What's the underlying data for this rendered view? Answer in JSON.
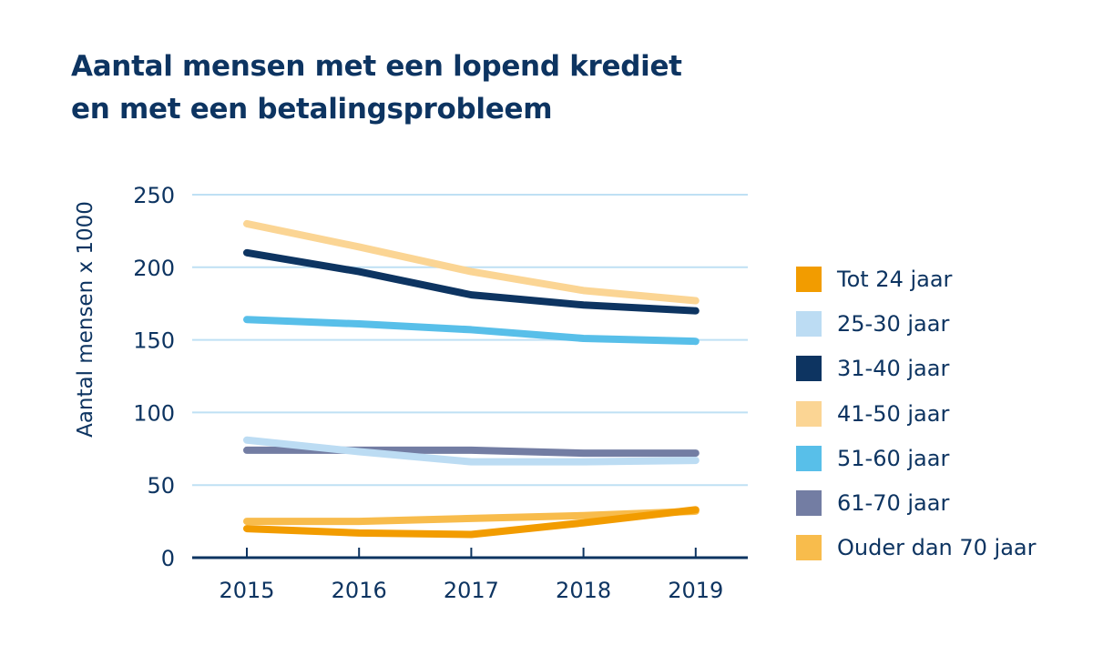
{
  "title_lines": [
    "Aantal mensen met een lopend krediet",
    "en met een betalingsprobleem"
  ],
  "chart_data": {
    "type": "line",
    "title": "Aantal mensen met een lopend krediet en met een betalingsprobleem",
    "xlabel": "",
    "ylabel": "Aantal mensen x 1000",
    "x": [
      "2015",
      "2016",
      "2017",
      "2018",
      "2019"
    ],
    "ylim": [
      0,
      250
    ],
    "yticks": [
      0,
      50,
      100,
      150,
      200,
      250
    ],
    "grid": true,
    "legend_position": "right",
    "series": [
      {
        "name": "Tot 24 jaar",
        "color": "#f29c00",
        "values": [
          20,
          17,
          16,
          24,
          33
        ]
      },
      {
        "name": "25-30 jaar",
        "color": "#bcdcf3",
        "values": [
          81,
          73,
          66,
          66,
          67
        ]
      },
      {
        "name": "31-40 jaar",
        "color": "#0d3461",
        "values": [
          210,
          197,
          181,
          174,
          170
        ]
      },
      {
        "name": "41-50 jaar",
        "color": "#fbd594",
        "values": [
          230,
          214,
          197,
          184,
          177
        ]
      },
      {
        "name": "51-60 jaar",
        "color": "#58bfe9",
        "values": [
          164,
          161,
          157,
          151,
          149
        ]
      },
      {
        "name": "61-70 jaar",
        "color": "#737da3",
        "values": [
          74,
          74,
          74,
          72,
          72
        ]
      },
      {
        "name": "Ouder dan 70 jaar",
        "color": "#f8bc4c",
        "values": [
          25,
          25,
          27,
          29,
          32
        ]
      }
    ]
  }
}
